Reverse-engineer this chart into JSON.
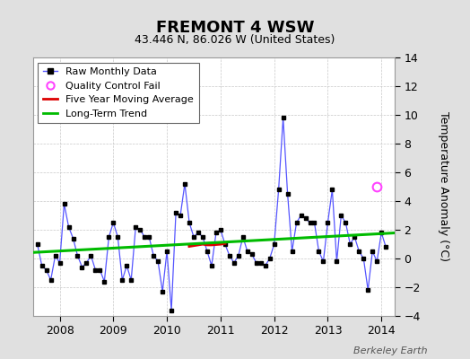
{
  "title": "FREMONT 4 WSW",
  "subtitle": "43.446 N, 86.026 W (United States)",
  "ylabel": "Temperature Anomaly (°C)",
  "watermark": "Berkeley Earth",
  "ylim": [
    -4,
    14
  ],
  "yticks": [
    -4,
    -2,
    0,
    2,
    4,
    6,
    8,
    10,
    12,
    14
  ],
  "xlim_start": 2007.5,
  "xlim_end": 2014.25,
  "xtick_years": [
    2008,
    2009,
    2010,
    2011,
    2012,
    2013,
    2014
  ],
  "raw_data_x": [
    2007.583,
    2007.667,
    2007.75,
    2007.833,
    2007.917,
    2008.0,
    2008.083,
    2008.167,
    2008.25,
    2008.333,
    2008.417,
    2008.5,
    2008.583,
    2008.667,
    2008.75,
    2008.833,
    2008.917,
    2009.0,
    2009.083,
    2009.167,
    2009.25,
    2009.333,
    2009.417,
    2009.5,
    2009.583,
    2009.667,
    2009.75,
    2009.833,
    2009.917,
    2010.0,
    2010.083,
    2010.167,
    2010.25,
    2010.333,
    2010.417,
    2010.5,
    2010.583,
    2010.667,
    2010.75,
    2010.833,
    2010.917,
    2011.0,
    2011.083,
    2011.167,
    2011.25,
    2011.333,
    2011.417,
    2011.5,
    2011.583,
    2011.667,
    2011.75,
    2011.833,
    2011.917,
    2012.0,
    2012.083,
    2012.167,
    2012.25,
    2012.333,
    2012.417,
    2012.5,
    2012.583,
    2012.667,
    2012.75,
    2012.833,
    2012.917,
    2013.0,
    2013.083,
    2013.167,
    2013.25,
    2013.333,
    2013.417,
    2013.5,
    2013.583,
    2013.667,
    2013.75,
    2013.833,
    2013.917,
    2014.0,
    2014.083
  ],
  "raw_data_y": [
    1.0,
    -0.5,
    -0.8,
    -1.5,
    0.2,
    -0.3,
    3.8,
    2.2,
    1.4,
    0.2,
    -0.6,
    -0.3,
    0.2,
    -0.8,
    -0.8,
    -1.6,
    1.5,
    2.5,
    1.5,
    -1.5,
    -0.5,
    -1.5,
    2.2,
    2.0,
    1.5,
    1.5,
    0.2,
    -0.2,
    -2.3,
    0.5,
    -3.6,
    3.2,
    3.0,
    5.2,
    2.5,
    1.5,
    1.8,
    1.5,
    0.5,
    -0.5,
    1.8,
    2.0,
    1.0,
    0.2,
    -0.3,
    0.2,
    1.5,
    0.5,
    0.3,
    -0.3,
    -0.3,
    -0.5,
    0.0,
    1.0,
    4.8,
    9.8,
    4.5,
    0.5,
    2.5,
    3.0,
    2.8,
    2.5,
    2.5,
    0.5,
    -0.2,
    2.5,
    4.8,
    -0.2,
    3.0,
    2.5,
    1.0,
    1.5,
    0.5,
    0.0,
    -2.2,
    0.5,
    -0.2,
    1.8,
    0.8
  ],
  "moving_avg_x": [
    2010.417,
    2010.5,
    2010.667,
    2010.75,
    2010.833,
    2011.0,
    2011.083
  ],
  "moving_avg_y": [
    0.85,
    0.9,
    1.0,
    0.95,
    0.95,
    1.0,
    1.05
  ],
  "trend_x": [
    2007.5,
    2014.25
  ],
  "trend_y": [
    0.42,
    1.78
  ],
  "qc_fail_x": [
    2013.917
  ],
  "qc_fail_y": [
    5.0
  ],
  "raw_line_color": "#5555ff",
  "marker_color": "#000000",
  "moving_avg_color": "#dd0000",
  "trend_color": "#00bb00",
  "qc_color": "#ff44ff",
  "bg_color": "#e0e0e0",
  "plot_bg_color": "#ffffff",
  "grid_color": "#c8c8c8",
  "title_fontsize": 13,
  "subtitle_fontsize": 9,
  "tick_fontsize": 9,
  "ylabel_fontsize": 9,
  "legend_fontsize": 8,
  "watermark_fontsize": 8
}
